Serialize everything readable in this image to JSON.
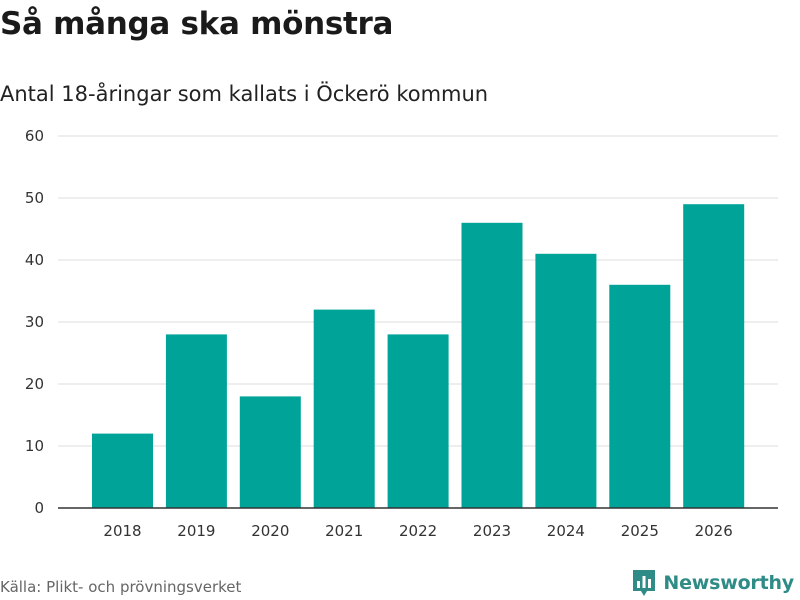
{
  "header": {
    "title": "Så många ska mönstra",
    "subtitle": "Antal 18-åringar som kallats i Öckerö kommun"
  },
  "footer": {
    "source": "Källa: Plikt- och prövningsverket",
    "brand": "Newsworthy",
    "brand_icon": "newsworthy-logo-icon"
  },
  "colors": {
    "bar": "#00a398",
    "grid": "#dddddd",
    "axis": "#333333",
    "brand": "#2e8b86"
  },
  "chart_data": {
    "type": "bar",
    "title": "Så många ska mönstra",
    "subtitle": "Antal 18-åringar som kallats i Öckerö kommun",
    "xlabel": "",
    "ylabel": "",
    "categories": [
      "2018",
      "2019",
      "2020",
      "2021",
      "2022",
      "2023",
      "2024",
      "2025",
      "2026"
    ],
    "values": [
      12,
      28,
      18,
      32,
      28,
      46,
      41,
      36,
      49
    ],
    "ylim": [
      0,
      60
    ],
    "yticks": [
      0,
      10,
      20,
      30,
      40,
      50,
      60
    ],
    "grid": true
  }
}
